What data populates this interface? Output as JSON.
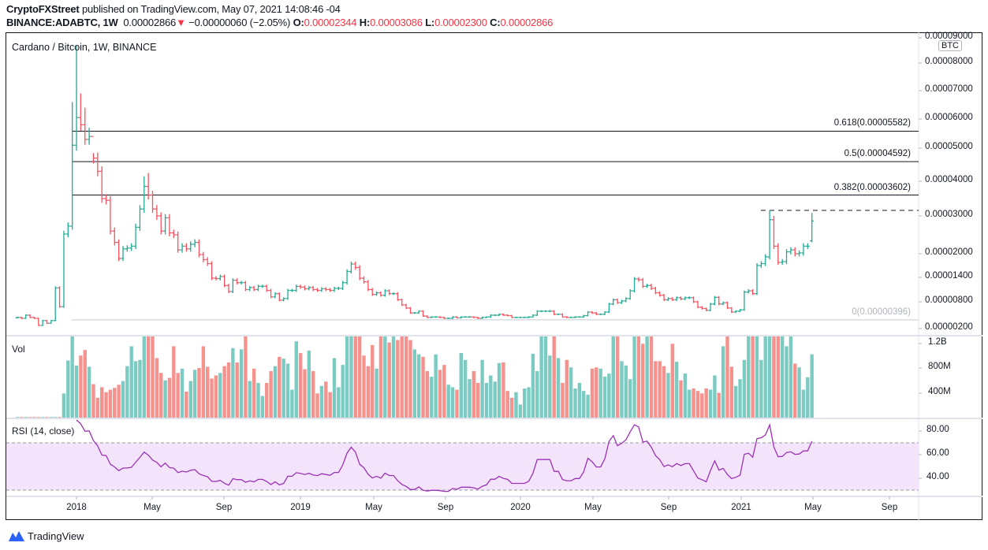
{
  "header": {
    "author": "CryptoFXStreet",
    "published": "published on TradingView.com, May 07, 2021 14:08:46 -04",
    "symbol": "BINANCE:ADABTC, 1W",
    "last": "0.00002866",
    "direction_icon": "triangle-down",
    "change": "−0.00000060 (−2.05%)",
    "o_label": "O:",
    "o": "0.00002344",
    "h_label": "H:",
    "h": "0.00003086",
    "l_label": "L:",
    "l": "0.00002300",
    "c_label": "C:",
    "c": "0.00002866"
  },
  "footer": {
    "brand": "TradingView"
  },
  "chart_data": {
    "type": "ohlc-bar",
    "title": "Cardano / Bitcoin, 1W, BINANCE",
    "currency_label": "BTC",
    "colors": {
      "up": "#22ab94",
      "down": "#f7525f",
      "vol_up": "#7ccbc2",
      "vol_down": "#f5928d",
      "rsi": "#9b31b5",
      "rsi_band": "#f3e4fc"
    },
    "price_axis": {
      "ticks": [
        "0.00009000",
        "0.00008000",
        "0.00007000",
        "0.00006000",
        "0.00005000",
        "0.00004000",
        "0.00003000",
        "0.00002000",
        "0.00001400",
        "0.00000800",
        "0.00000200"
      ]
    },
    "time_axis": {
      "ticks": [
        "2018",
        "May",
        "Sep",
        "2019",
        "May",
        "Sep",
        "2020",
        "May",
        "Sep",
        "2021",
        "May",
        "Sep"
      ]
    },
    "fib_levels": [
      {
        "label": "0.618(0.00005582)",
        "value": 5.582e-05
      },
      {
        "label": "0.5(0.00004592)",
        "value": 4.592e-05
      },
      {
        "label": "0.382(0.00003602)",
        "value": 3.602e-05
      },
      {
        "label": "0(0.00000396)",
        "value": 3.96e-06
      }
    ],
    "resistance_dashed": 3.16e-05,
    "close": [
      4.5e-06,
      4.3e-06,
      5e-06,
      4.5e-06,
      4.3e-06,
      2.7e-06,
      3.8e-06,
      3.2e-06,
      3.8e-06,
      1.14e-05,
      6.9e-06,
      2.52e-05,
      2.73e-05,
      5.1e-05,
      6.05e-05,
      5.8e-05,
      5.3e-05,
      5.4e-05,
      4.7e-05,
      4.3e-05,
      3.5e-05,
      3.45e-05,
      2.6e-05,
      2.3e-05,
      1.88e-05,
      2.13e-05,
      2.15e-05,
      2.2e-05,
      2.7e-05,
      3.2e-05,
      3.85e-05,
      3.6e-05,
      3.2e-05,
      3e-05,
      2.6e-05,
      2.95e-05,
      2.55e-05,
      2.5e-05,
      2.1e-05,
      2.2e-05,
      2.13e-05,
      2.25e-05,
      2.3e-05,
      1.98e-05,
      1.85e-05,
      1.75e-05,
      1.38e-05,
      1.37e-05,
      1.42e-05,
      1.2e-05,
      1.05e-05,
      1.33e-05,
      1.27e-05,
      1.27e-05,
      1.1e-05,
      1.15e-05,
      1.1e-05,
      1.18e-05,
      1.18e-05,
      1.08e-05,
      9.2e-06,
      1e-05,
      8.4e-06,
      8.8e-06,
      1.08e-05,
      1.08e-05,
      1.18e-05,
      1.16e-05,
      1.12e-05,
      1.15e-05,
      1.1e-05,
      1.08e-05,
      1.12e-05,
      1.1e-05,
      1.08e-05,
      1.13e-05,
      1.13e-05,
      1.27e-05,
      1.55e-05,
      1.74e-05,
      1.65e-05,
      1.38e-05,
      1.29e-05,
      1.1e-05,
      9.8e-06,
      1.02e-05,
      9.6e-06,
      1.07e-05,
      1e-05,
      1e-05,
      8.5e-06,
      7.3e-06,
      6.6e-06,
      5.5e-06,
      5.5e-06,
      5.9e-06,
      4.8e-06,
      4.5e-06,
      4.6e-06,
      4.6e-06,
      4.5e-06,
      4.3e-06,
      4.3e-06,
      4.6e-06,
      4.4e-06,
      4.6e-06,
      4.6e-06,
      4.6e-06,
      4.5e-06,
      4.3e-06,
      4.5e-06,
      4.6e-06,
      5e-06,
      5e-06,
      5.2e-06,
      5e-06,
      4.9e-06,
      4.5e-06,
      4.5e-06,
      4.5e-06,
      4.5e-06,
      4.6e-06,
      5e-06,
      5.9e-06,
      5.9e-06,
      5.9e-06,
      5.9e-06,
      5.2e-06,
      5.2e-06,
      4.6e-06,
      4.5e-06,
      4.5e-06,
      4.6e-06,
      4.6e-06,
      4.9e-06,
      5.7e-06,
      5.5e-06,
      5.2e-06,
      5.2e-06,
      5.7e-06,
      7.5e-06,
      8.5e-06,
      7.8e-06,
      8.2e-06,
      8.8e-06,
      1.07e-05,
      1.36e-05,
      1.34e-05,
      1.18e-05,
      1.2e-05,
      1.13e-05,
      1.02e-05,
      9.6e-06,
      8.5e-06,
      8.8e-06,
      8.5e-06,
      9e-06,
      8.7e-06,
      9e-06,
      9e-06,
      8e-06,
      6.8e-06,
      6.5e-06,
      6.1e-06,
      7.5e-06,
      9.1e-06,
      7.5e-06,
      7.8e-06,
      6.6e-06,
      5.7e-06,
      5.9e-06,
      6.2e-06,
      1.04e-05,
      1.07e-05,
      1e-05,
      1.7e-05,
      1.75e-05,
      1.92e-05,
      2.9e-05,
      2.2e-05,
      1.78e-05,
      1.8e-05,
      2.05e-05,
      2.1e-05,
      2e-05,
      2.02e-05,
      2.2e-05,
      2.2e-05,
      2.866e-05
    ],
    "high_points": [
      [
        13,
        6.6e-05
      ],
      [
        14,
        8.7e-05
      ],
      [
        15,
        6.9e-05
      ],
      [
        16,
        6.4e-05
      ],
      [
        17,
        5.7e-05
      ],
      [
        18,
        4.85e-05
      ],
      [
        30,
        4.15e-05
      ],
      [
        31,
        4.25e-05
      ],
      [
        178,
        3.16e-05
      ],
      [
        188,
        3.086e-05
      ]
    ],
    "last_bar": {
      "open": 2.344e-05,
      "high": 3.086e-05,
      "low": 2.3e-05,
      "close": 2.866e-05
    },
    "volume": {
      "label": "Vol",
      "ticks": [
        "1.2B",
        "800M",
        "400M"
      ],
      "values": [
        10000000.0,
        10000000.0,
        10000000.0,
        10000000.0,
        10000000.0,
        10000000.0,
        10000000.0,
        10000000.0,
        10000000.0,
        10000000.0,
        10000000.0,
        390000000.0,
        920000000.0,
        1310000000.0,
        840000000.0,
        1000000000.0,
        1090000000.0,
        820000000.0,
        540000000.0,
        320000000.0,
        490000000.0,
        410000000.0,
        450000000.0,
        480000000.0,
        530000000.0,
        590000000.0,
        830000000.0,
        1150000000.0,
        910000000.0,
        930000000.0,
        1310000000.0,
        1310000000.0,
        1310000000.0,
        960000000.0,
        720000000.0,
        600000000.0,
        640000000.0,
        1150000000.0,
        720000000.0,
        790000000.0,
        420000000.0,
        590000000.0,
        770000000.0,
        800000000.0,
        1150000000.0,
        820000000.0,
        630000000.0,
        680000000.0,
        720000000.0,
        830000000.0,
        890000000.0,
        1120000000.0,
        890000000.0,
        1100000000.0,
        1310000000.0,
        590000000.0,
        790000000.0,
        560000000.0,
        350000000.0,
        560000000.0,
        750000000.0,
        830000000.0,
        980000000.0,
        950000000.0,
        870000000.0,
        450000000.0,
        1230000000.0,
        1040000000.0,
        780000000.0,
        1080000000.0,
        750000000.0,
        390000000.0,
        510000000.0,
        580000000.0,
        410000000.0,
        960000000.0,
        490000000.0,
        850000000.0,
        1310000000.0,
        1310000000.0,
        1310000000.0,
        1310000000.0,
        1000000000.0,
        830000000.0,
        1170000000.0,
        790000000.0,
        1310000000.0,
        1310000000.0,
        1210000000.0,
        1310000000.0,
        1250000000.0,
        1310000000.0,
        1310000000.0,
        1250000000.0,
        1100000000.0,
        1020000000.0,
        980000000.0,
        750000000.0,
        660000000.0,
        1020000000.0,
        770000000.0,
        850000000.0,
        530000000.0,
        490000000.0,
        450000000.0,
        1040000000.0,
        930000000.0,
        620000000.0,
        750000000.0,
        560000000.0,
        930000000.0,
        560000000.0,
        680000000.0,
        580000000.0,
        880000000.0,
        890000000.0,
        430000000.0,
        320000000.0,
        410000000.0,
        210000000.0,
        470000000.0,
        490000000.0,
        1030000000.0,
        750000000.0,
        1310000000.0,
        1310000000.0,
        1000000000.0,
        1310000000.0,
        960000000.0,
        560000000.0,
        930000000.0,
        810000000.0,
        470000000.0,
        560000000.0,
        430000000.0,
        370000000.0,
        790000000.0,
        810000000.0,
        790000000.0,
        660000000.0,
        710000000.0,
        1310000000.0,
        1310000000.0,
        910000000.0,
        840000000.0,
        620000000.0,
        1310000000.0,
        1310000000.0,
        1190000000.0,
        1310000000.0,
        1310000000.0,
        910000000.0,
        910000000.0,
        830000000.0,
        720000000.0,
        1190000000.0,
        900000000.0,
        600000000.0,
        710000000.0,
        450000000.0,
        470000000.0,
        430000000.0,
        390000000.0,
        470000000.0,
        450000000.0,
        680000000.0,
        400000000.0,
        1150000000.0,
        1310000000.0,
        820000000.0,
        510000000.0,
        620000000.0,
        930000000.0,
        1310000000.0,
        1310000000.0,
        1310000000.0,
        930000000.0,
        1310000000.0,
        1310000000.0,
        1310000000.0,
        1310000000.0,
        1310000000.0,
        1150000000.0,
        1310000000.0,
        870000000.0,
        810000000.0,
        450000000.0,
        650000000.0,
        1020000000.0,
        630000000.0,
        470000000.0,
        650000000.0
      ]
    },
    "rsi": {
      "label": "RSI (14, close)",
      "period": 14,
      "ticks": [
        "80.00",
        "60.00",
        "40.00"
      ],
      "upper": 70,
      "lower": 30
    }
  }
}
